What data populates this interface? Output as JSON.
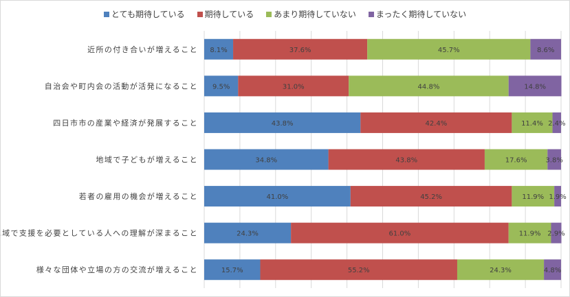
{
  "chart_data": {
    "type": "bar",
    "orientation": "horizontal",
    "stacked": true,
    "percent_stacked": true,
    "xlim": [
      0,
      100
    ],
    "legend_position": "top",
    "grid": true,
    "categories": [
      "近所の付き合いが増えること",
      "自治会や町内会の活動が活発になること",
      "四日市市の産業や経済が発展すること",
      "地域で子どもが増えること",
      "若者の雇用の機会が増えること",
      "地域で支援を必要としている人への理解が深まること",
      "様々な団体や立場の方の交流が増えること"
    ],
    "series": [
      {
        "name": "とても期待している",
        "color": "#4f81bd",
        "values": [
          8.1,
          9.5,
          43.8,
          34.8,
          41.0,
          24.3,
          15.7
        ],
        "labels": [
          "8.1%",
          "9.5%",
          "43.8%",
          "34.8%",
          "41.0%",
          "24.3%",
          "15.7%"
        ]
      },
      {
        "name": "期待している",
        "color": "#c0504d",
        "values": [
          37.6,
          31.0,
          42.4,
          43.8,
          45.2,
          61.0,
          55.2
        ],
        "labels": [
          "37.6%",
          "31.0%",
          "42.4%",
          "43.8%",
          "45.2%",
          "61.0%",
          "55.2%"
        ]
      },
      {
        "name": "あまり期待していない",
        "color": "#9bbb59",
        "values": [
          45.7,
          44.8,
          11.4,
          17.6,
          11.9,
          11.9,
          24.3
        ],
        "labels": [
          "45.7%",
          "44.8%",
          "11.4%",
          "17.6%",
          "11.9%",
          "11.9%",
          "24.3%"
        ]
      },
      {
        "name": "まったく期待していない",
        "color": "#8064a2",
        "values": [
          8.6,
          14.8,
          2.4,
          3.8,
          1.9,
          2.9,
          4.8
        ],
        "labels": [
          "8.6%",
          "14.8%",
          "2.4%",
          "3.8%",
          "1.9%",
          "2.9%",
          "4.8%"
        ]
      }
    ]
  }
}
